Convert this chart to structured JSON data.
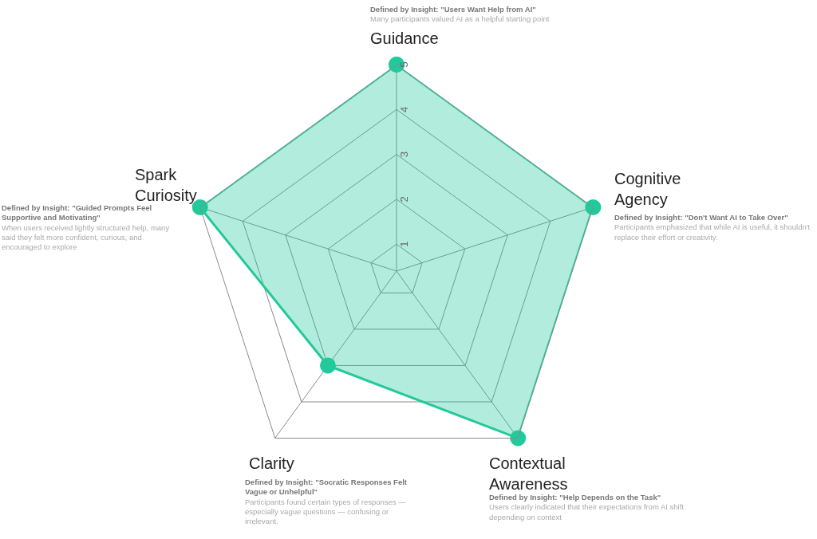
{
  "chart_data": {
    "type": "radar",
    "categories": [
      "Guidance",
      "Cognitive Agency",
      "Contextual Awareness",
      "Clarity",
      "Spark Curiosity"
    ],
    "series": [
      {
        "color": "#22c99a",
        "values": [
          5,
          5,
          5,
          3,
          5
        ]
      }
    ],
    "ylim": [
      0.4,
      5
    ],
    "yticks": [
      1,
      2,
      3,
      4,
      5
    ],
    "grid": true,
    "marker": "circle",
    "legend": false,
    "annotations": [
      "Defined by Insight: \"Users Want Help from AI\"",
      "Many participants valued AI as a helpful starting point",
      "Defined by Insight: \"Don't Want AI to Take Over\"",
      "Participants emphasized that while AI is useful, it shouldn't replace their effort or creativity.",
      "Defined by Insight: \"Help Depends on the Task\"",
      "Users clearly indicated that their expectations from AI shift depending on context",
      "Defined by Insight: \"Socratic Responses Felt Vague or Unhelpful\"",
      "Participants found certain types of responses — especially vague questions — confusing or irrelevant.",
      "Defined by Insight: \"Guided Prompts Feel Supportive and Motivating\"",
      "When users received lightly structured help, many said they felt more confident, curious, and encouraged to explore"
    ]
  }
}
